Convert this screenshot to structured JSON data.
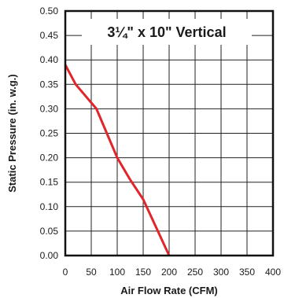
{
  "chart_data": {
    "type": "line",
    "title": "3¼\" x 10\" Vertical",
    "xlabel": "Air Flow Rate (CFM)",
    "ylabel": "Static Pressure (in. w.g.)",
    "xlim": [
      0,
      400
    ],
    "ylim": [
      0,
      0.5
    ],
    "xticks": [
      "0",
      "50",
      "100",
      "150",
      "200",
      "250",
      "300",
      "350",
      "400"
    ],
    "yticks": [
      "0.00",
      "0.05",
      "0.10",
      "0.15",
      "0.20",
      "0.25",
      "0.30",
      "0.35",
      "0.40",
      "0.45",
      "0.50"
    ],
    "grid": true,
    "series": [
      {
        "color": "#e0252b",
        "x": [
          0,
          20,
          60,
          80,
          100,
          125,
          150,
          200
        ],
        "y": [
          0.39,
          0.35,
          0.3,
          0.25,
          0.2,
          0.155,
          0.115,
          0.0
        ]
      }
    ]
  }
}
